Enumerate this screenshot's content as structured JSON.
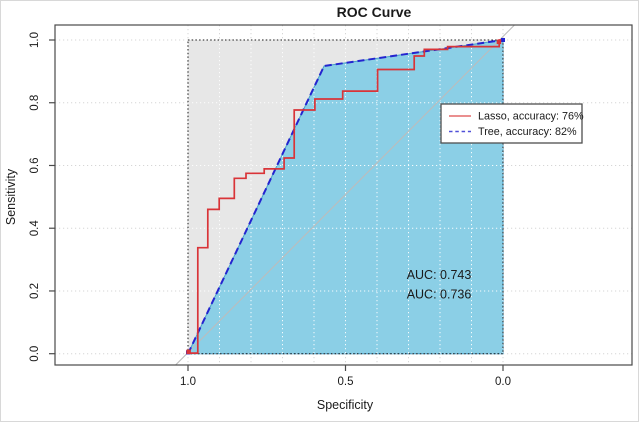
{
  "chart_data": {
    "type": "line",
    "title": "ROC Curve",
    "xlabel": "Specificity",
    "ylabel": "Sensitivity",
    "x_axis": {
      "range": [
        1.0,
        0.0
      ],
      "reversed": true,
      "ticks": [
        1.0,
        0.5,
        0.0
      ],
      "tick_labels": [
        "1.0",
        "0.5",
        "0.0"
      ]
    },
    "y_axis": {
      "range": [
        0.0,
        1.0
      ],
      "ticks": [
        0.0,
        0.2,
        0.4,
        0.6,
        0.8,
        1.0
      ],
      "tick_labels": [
        "0.0",
        "0.2",
        "0.4",
        "0.6",
        "0.8",
        "1.0"
      ]
    },
    "grid": {
      "style": "dotted",
      "x_spacing": 0.1,
      "y_spacing": 0.2
    },
    "reference_line": {
      "type": "diagonal-identity",
      "color": "#bcbcbc"
    },
    "upper_region_fill": "#e7e7e7",
    "inner_border_style": "dotted",
    "series": [
      {
        "name": "Lasso",
        "legend_label": "Lasso, accuracy: 76%",
        "color": "#d93438",
        "line_style": "solid",
        "auc": "0.743",
        "points_spec_sens": [
          [
            1.0,
            0.002
          ],
          [
            0.969,
            0.002
          ],
          [
            0.969,
            0.338
          ],
          [
            0.937,
            0.338
          ],
          [
            0.937,
            0.46
          ],
          [
            0.901,
            0.46
          ],
          [
            0.901,
            0.495
          ],
          [
            0.853,
            0.495
          ],
          [
            0.853,
            0.559
          ],
          [
            0.816,
            0.559
          ],
          [
            0.816,
            0.575
          ],
          [
            0.758,
            0.575
          ],
          [
            0.758,
            0.589
          ],
          [
            0.695,
            0.589
          ],
          [
            0.695,
            0.624
          ],
          [
            0.663,
            0.624
          ],
          [
            0.663,
            0.777
          ],
          [
            0.597,
            0.777
          ],
          [
            0.597,
            0.812
          ],
          [
            0.509,
            0.812
          ],
          [
            0.509,
            0.837
          ],
          [
            0.398,
            0.837
          ],
          [
            0.398,
            0.906
          ],
          [
            0.282,
            0.906
          ],
          [
            0.282,
            0.949
          ],
          [
            0.25,
            0.949
          ],
          [
            0.25,
            0.97
          ],
          [
            0.176,
            0.97
          ],
          [
            0.176,
            0.979
          ],
          [
            0.012,
            0.979
          ],
          [
            0.012,
            1.0
          ],
          [
            0.0,
            1.0
          ]
        ]
      },
      {
        "name": "Tree",
        "legend_label": "Tree, accuracy: 82%",
        "color": "#2424cf",
        "line_style": "dashed",
        "auc": "0.736",
        "fill_color": "#8bcfe6",
        "fill_edge_color": "#49a0c8",
        "points_spec_sens": [
          [
            1.0,
            0.0
          ],
          [
            0.568,
            0.917
          ],
          [
            0.0,
            1.0
          ]
        ]
      }
    ],
    "annotations": [
      {
        "text": "AUC: 0.743",
        "color": "#cc2222"
      },
      {
        "text": "AUC: 0.736",
        "color": "#2323cc"
      }
    ],
    "legend": {
      "position": "right",
      "items": [
        "Lasso, accuracy: 76%",
        "Tree, accuracy: 82%"
      ]
    }
  }
}
